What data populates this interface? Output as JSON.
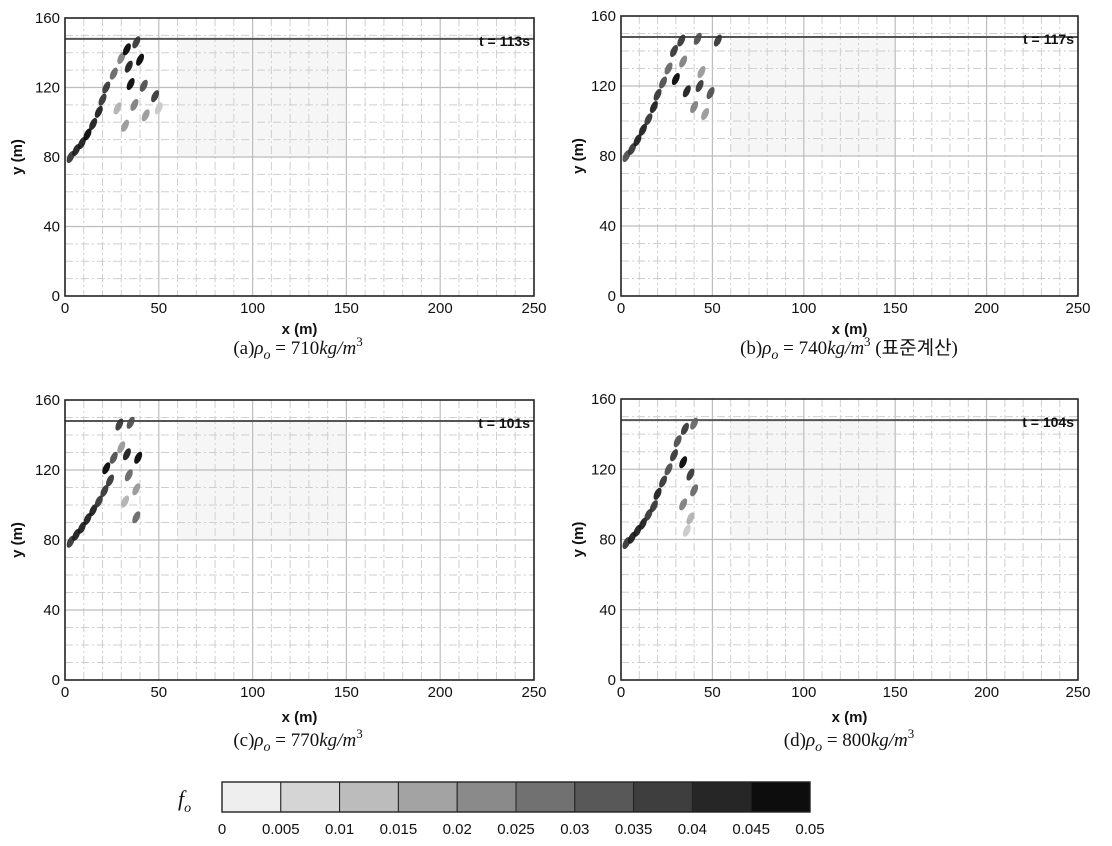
{
  "chart_data": [
    {
      "type": "heatmap",
      "panel": "a",
      "time_label": "t = 113s",
      "caption": {
        "prefix": "(a)",
        "symbol": "ρ",
        "sub": "o",
        "value": " =  710",
        "unit": "kg/m",
        "exp": "3",
        "suffix": ""
      },
      "xlabel": "x (m)",
      "ylabel": "y (m)",
      "xlim": [
        0,
        250
      ],
      "ylim": [
        0,
        160
      ],
      "xticks": [
        0,
        50,
        100,
        150,
        200,
        250
      ],
      "yticks": [
        0,
        40,
        80,
        120,
        160
      ],
      "surface_y": 148,
      "plume": [
        {
          "x": 3,
          "y": 80,
          "v": 0.04
        },
        {
          "x": 6,
          "y": 84,
          "v": 0.045
        },
        {
          "x": 9,
          "y": 88,
          "v": 0.045
        },
        {
          "x": 12,
          "y": 93,
          "v": 0.05
        },
        {
          "x": 15,
          "y": 99,
          "v": 0.045
        },
        {
          "x": 18,
          "y": 106,
          "v": 0.045
        },
        {
          "x": 20,
          "y": 113,
          "v": 0.04
        },
        {
          "x": 22,
          "y": 120,
          "v": 0.04
        },
        {
          "x": 26,
          "y": 128,
          "v": 0.03
        },
        {
          "x": 30,
          "y": 137,
          "v": 0.025
        },
        {
          "x": 33,
          "y": 142,
          "v": 0.05
        },
        {
          "x": 38,
          "y": 146,
          "v": 0.04
        },
        {
          "x": 34,
          "y": 132,
          "v": 0.045
        },
        {
          "x": 40,
          "y": 136,
          "v": 0.05
        },
        {
          "x": 35,
          "y": 122,
          "v": 0.05
        },
        {
          "x": 42,
          "y": 121,
          "v": 0.035
        },
        {
          "x": 48,
          "y": 115,
          "v": 0.04
        },
        {
          "x": 37,
          "y": 110,
          "v": 0.025
        },
        {
          "x": 43,
          "y": 104,
          "v": 0.02
        },
        {
          "x": 50,
          "y": 108,
          "v": 0.01
        },
        {
          "x": 32,
          "y": 98,
          "v": 0.02
        },
        {
          "x": 28,
          "y": 108,
          "v": 0.015
        }
      ]
    },
    {
      "type": "heatmap",
      "panel": "b",
      "time_label": "t = 117s",
      "caption": {
        "prefix": "(b)",
        "symbol": "ρ",
        "sub": "o",
        "value": " =  740",
        "unit": "kg/m",
        "exp": "3",
        "suffix": " (표준계산)"
      },
      "xlabel": "x (m)",
      "ylabel": "y (m)",
      "xlim": [
        0,
        250
      ],
      "ylim": [
        0,
        160
      ],
      "xticks": [
        0,
        50,
        100,
        150,
        200,
        250
      ],
      "yticks": [
        0,
        40,
        80,
        120,
        160
      ],
      "surface_y": 148,
      "plume": [
        {
          "x": 3,
          "y": 80,
          "v": 0.035
        },
        {
          "x": 6,
          "y": 84,
          "v": 0.04
        },
        {
          "x": 9,
          "y": 89,
          "v": 0.045
        },
        {
          "x": 12,
          "y": 95,
          "v": 0.045
        },
        {
          "x": 15,
          "y": 101,
          "v": 0.04
        },
        {
          "x": 18,
          "y": 108,
          "v": 0.045
        },
        {
          "x": 20,
          "y": 115,
          "v": 0.04
        },
        {
          "x": 23,
          "y": 122,
          "v": 0.035
        },
        {
          "x": 26,
          "y": 130,
          "v": 0.03
        },
        {
          "x": 29,
          "y": 140,
          "v": 0.04
        },
        {
          "x": 33,
          "y": 146,
          "v": 0.04
        },
        {
          "x": 42,
          "y": 147,
          "v": 0.035
        },
        {
          "x": 53,
          "y": 146,
          "v": 0.04
        },
        {
          "x": 30,
          "y": 124,
          "v": 0.05
        },
        {
          "x": 36,
          "y": 117,
          "v": 0.045
        },
        {
          "x": 43,
          "y": 120,
          "v": 0.04
        },
        {
          "x": 49,
          "y": 116,
          "v": 0.035
        },
        {
          "x": 40,
          "y": 108,
          "v": 0.025
        },
        {
          "x": 46,
          "y": 104,
          "v": 0.02
        },
        {
          "x": 34,
          "y": 134,
          "v": 0.025
        },
        {
          "x": 44,
          "y": 128,
          "v": 0.02
        }
      ]
    },
    {
      "type": "heatmap",
      "panel": "c",
      "time_label": "t = 101s",
      "caption": {
        "prefix": "(c)",
        "symbol": "ρ",
        "sub": "o",
        "value": " =  770",
        "unit": "kg/m",
        "exp": "3",
        "suffix": ""
      },
      "xlabel": "x (m)",
      "ylabel": "y (m)",
      "xlim": [
        0,
        250
      ],
      "ylim": [
        0,
        160
      ],
      "xticks": [
        0,
        50,
        100,
        150,
        200,
        250
      ],
      "yticks": [
        0,
        40,
        80,
        120,
        160
      ],
      "surface_y": 148,
      "plume": [
        {
          "x": 3,
          "y": 79,
          "v": 0.04
        },
        {
          "x": 6,
          "y": 83,
          "v": 0.045
        },
        {
          "x": 9,
          "y": 87,
          "v": 0.045
        },
        {
          "x": 12,
          "y": 92,
          "v": 0.045
        },
        {
          "x": 15,
          "y": 97,
          "v": 0.045
        },
        {
          "x": 18,
          "y": 102,
          "v": 0.04
        },
        {
          "x": 21,
          "y": 108,
          "v": 0.04
        },
        {
          "x": 24,
          "y": 114,
          "v": 0.04
        },
        {
          "x": 22,
          "y": 121,
          "v": 0.05
        },
        {
          "x": 26,
          "y": 127,
          "v": 0.035
        },
        {
          "x": 30,
          "y": 133,
          "v": 0.02
        },
        {
          "x": 29,
          "y": 146,
          "v": 0.04
        },
        {
          "x": 35,
          "y": 147,
          "v": 0.035
        },
        {
          "x": 33,
          "y": 129,
          "v": 0.045
        },
        {
          "x": 39,
          "y": 127,
          "v": 0.05
        },
        {
          "x": 34,
          "y": 117,
          "v": 0.03
        },
        {
          "x": 38,
          "y": 109,
          "v": 0.02
        },
        {
          "x": 38,
          "y": 93,
          "v": 0.03
        },
        {
          "x": 32,
          "y": 102,
          "v": 0.015
        }
      ]
    },
    {
      "type": "heatmap",
      "panel": "d",
      "time_label": "t = 104s",
      "caption": {
        "prefix": "(d)",
        "symbol": "ρ",
        "sub": "o",
        "value": " =  800",
        "unit": "kg/m",
        "exp": "3",
        "suffix": ""
      },
      "xlabel": "x (m)",
      "ylabel": "y (m)",
      "xlim": [
        0,
        250
      ],
      "ylim": [
        0,
        160
      ],
      "xticks": [
        0,
        50,
        100,
        150,
        200,
        250
      ],
      "yticks": [
        0,
        40,
        80,
        120,
        160
      ],
      "surface_y": 148,
      "plume": [
        {
          "x": 3,
          "y": 78,
          "v": 0.04
        },
        {
          "x": 6,
          "y": 81,
          "v": 0.045
        },
        {
          "x": 9,
          "y": 85,
          "v": 0.045
        },
        {
          "x": 12,
          "y": 89,
          "v": 0.045
        },
        {
          "x": 15,
          "y": 94,
          "v": 0.04
        },
        {
          "x": 18,
          "y": 99,
          "v": 0.04
        },
        {
          "x": 20,
          "y": 106,
          "v": 0.045
        },
        {
          "x": 23,
          "y": 113,
          "v": 0.04
        },
        {
          "x": 26,
          "y": 120,
          "v": 0.035
        },
        {
          "x": 29,
          "y": 128,
          "v": 0.04
        },
        {
          "x": 31,
          "y": 136,
          "v": 0.035
        },
        {
          "x": 35,
          "y": 143,
          "v": 0.04
        },
        {
          "x": 40,
          "y": 146,
          "v": 0.03
        },
        {
          "x": 34,
          "y": 124,
          "v": 0.05
        },
        {
          "x": 38,
          "y": 117,
          "v": 0.04
        },
        {
          "x": 40,
          "y": 108,
          "v": 0.03
        },
        {
          "x": 34,
          "y": 100,
          "v": 0.025
        },
        {
          "x": 38,
          "y": 92,
          "v": 0.015
        },
        {
          "x": 36,
          "y": 85,
          "v": 0.01
        }
      ]
    }
  ],
  "colorbar": {
    "symbol": "f",
    "sub": "o",
    "min": 0,
    "max": 0.05,
    "tick_labels": [
      "0",
      "0.005",
      "0.01",
      "0.015",
      "0.02",
      "0.025",
      "0.03",
      "0.035",
      "0.04",
      "0.045",
      "0.05"
    ]
  }
}
